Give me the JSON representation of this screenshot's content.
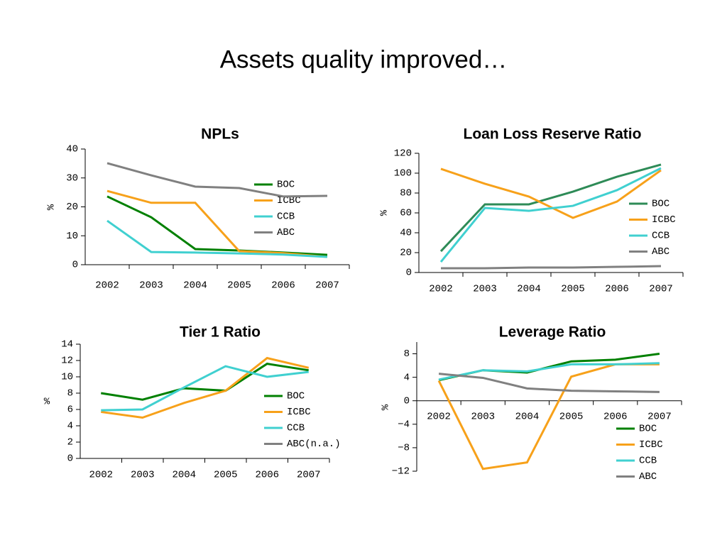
{
  "title": "Assets quality improved…",
  "chart_data": [
    {
      "type": "line",
      "title": "NPLs",
      "ylabel": "%",
      "categories": [
        "2002",
        "2003",
        "2004",
        "2005",
        "2006",
        "2007"
      ],
      "ylim": [
        0,
        40
      ],
      "yticks": [
        0,
        10,
        20,
        30,
        40
      ],
      "series": [
        {
          "name": "BOC",
          "color": "#008000",
          "values": [
            23.6,
            16.4,
            5.4,
            4.9,
            4.2,
            3.4
          ]
        },
        {
          "name": "ICBC",
          "color": "#f7a11a",
          "values": [
            25.5,
            21.4,
            21.4,
            4.7,
            4.0,
            2.7
          ]
        },
        {
          "name": "CCB",
          "color": "#40d0d0",
          "values": [
            15.2,
            4.4,
            4.2,
            3.9,
            3.5,
            2.7
          ]
        },
        {
          "name": "ABC",
          "color": "#808080",
          "values": [
            35.1,
            30.9,
            27.0,
            26.5,
            23.6,
            23.8
          ]
        }
      ]
    },
    {
      "type": "line",
      "title": "Loan Loss Reserve Ratio",
      "ylabel": "%",
      "categories": [
        "2002",
        "2003",
        "2004",
        "2005",
        "2006",
        "2007"
      ],
      "ylim": [
        0,
        120
      ],
      "yticks": [
        0,
        20,
        40,
        60,
        80,
        100,
        120
      ],
      "series": [
        {
          "name": "BOC",
          "color": "#2e8b57",
          "values": [
            21.4,
            68.6,
            68.6,
            81.4,
            96.4,
            108.6
          ]
        },
        {
          "name": "ICBC",
          "color": "#f7a11a",
          "values": [
            104.3,
            89.3,
            76.4,
            55,
            71.4,
            102.9
          ]
        },
        {
          "name": "CCB",
          "color": "#40d0d0",
          "values": [
            10.7,
            65,
            62.1,
            67.1,
            82.9,
            105
          ]
        },
        {
          "name": "ABC",
          "color": "#808080",
          "values": [
            4.3,
            4.3,
            5,
            5,
            5.7,
            6.4
          ]
        }
      ]
    },
    {
      "type": "line",
      "title": "Tier 1 Ratio",
      "ylabel": "%",
      "categories": [
        "2002",
        "2003",
        "2004",
        "2005",
        "2006",
        "2007"
      ],
      "ylim": [
        0,
        14
      ],
      "yticks": [
        0,
        2,
        4,
        6,
        8,
        10,
        12,
        14
      ],
      "series": [
        {
          "name": "BOC",
          "color": "#008000",
          "values": [
            8.0,
            7.2,
            8.6,
            8.3,
            11.6,
            10.8
          ]
        },
        {
          "name": "ICBC",
          "color": "#f7a11a",
          "values": [
            5.7,
            5.0,
            6.8,
            8.3,
            12.3,
            11.1
          ]
        },
        {
          "name": "CCB",
          "color": "#40d0d0",
          "values": [
            5.9,
            6.0,
            8.7,
            11.3,
            10.0,
            10.6
          ]
        },
        {
          "name": "ABC(n.a.)",
          "color": "#808080",
          "values": [
            null,
            null,
            null,
            null,
            null,
            null
          ]
        }
      ]
    },
    {
      "type": "line",
      "title": "Leverage Ratio",
      "ylabel": "%",
      "categories": [
        "2002",
        "2003",
        "2004",
        "2005",
        "2006",
        "2007"
      ],
      "ylim": [
        -12,
        10
      ],
      "yticks": [
        {
          "value": -12,
          "label": "−12"
        },
        {
          "value": -8,
          "label": "−8"
        },
        {
          "value": -4,
          "label": "−4"
        },
        0,
        4,
        8
      ],
      "series": [
        {
          "name": "BOC",
          "color": "#008000",
          "values": [
            3.5,
            5.2,
            4.8,
            6.7,
            7.0,
            8.0
          ]
        },
        {
          "name": "ICBC",
          "color": "#f7a11a",
          "values": [
            3.4,
            -11.6,
            -10.5,
            4.1,
            6.2,
            6.2
          ]
        },
        {
          "name": "CCB",
          "color": "#40d0d0",
          "values": [
            3.6,
            5.2,
            5.0,
            6.2,
            6.2,
            6.4
          ]
        },
        {
          "name": "ABC",
          "color": "#808080",
          "values": [
            4.6,
            3.9,
            2.1,
            1.7,
            1.6,
            1.5
          ]
        }
      ]
    }
  ]
}
